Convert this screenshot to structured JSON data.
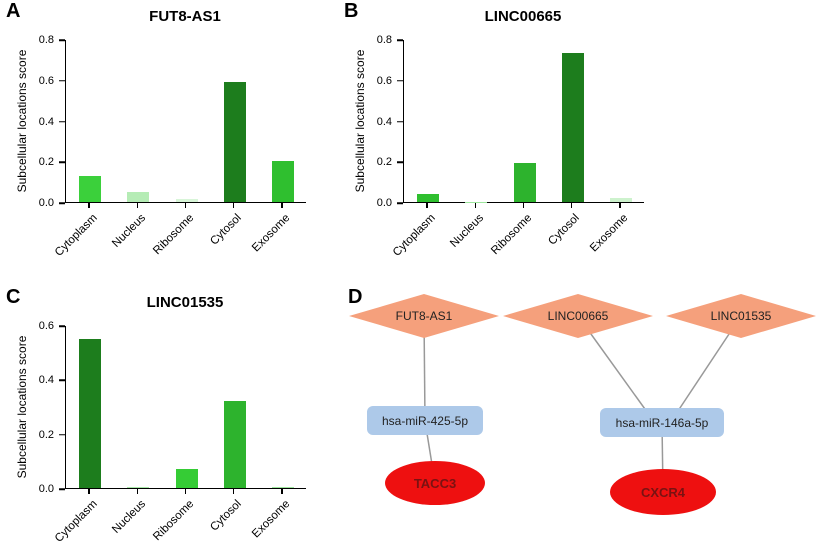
{
  "panels": {
    "a": "A",
    "b": "B",
    "c": "C",
    "d": "D"
  },
  "chart_data": [
    {
      "type": "bar",
      "title": "FUT8-AS1",
      "ylabel": "Subcellular locations score",
      "categories": [
        "Cytoplasm",
        "Nucleus",
        "Ribosome",
        "Cytosol",
        "Exosome"
      ],
      "values": [
        0.13,
        0.05,
        0.015,
        0.59,
        0.2
      ],
      "colors": [
        "#3bd03b",
        "#b5ecb5",
        "#d8f5d8",
        "#1d7d1d",
        "#2fbf2f"
      ],
      "ylim": [
        0,
        0.8
      ],
      "yticks": [
        0,
        0.2,
        0.4,
        0.6,
        0.8
      ],
      "grid": false,
      "legend": "none"
    },
    {
      "type": "bar",
      "title": "LINC00665",
      "ylabel": "Subcellular locations score",
      "categories": [
        "Cytoplasm",
        "Nucleus",
        "Ribosome",
        "Cytosol",
        "Exosome"
      ],
      "values": [
        0.04,
        0.002,
        0.19,
        0.73,
        0.02
      ],
      "colors": [
        "#2fbf2f",
        "#9de69d",
        "#2db32d",
        "#1d7d1d",
        "#cdf2cd"
      ],
      "ylim": [
        0,
        0.8
      ],
      "yticks": [
        0,
        0.2,
        0.4,
        0.6,
        0.8
      ],
      "grid": false,
      "legend": "none"
    },
    {
      "type": "bar",
      "title": "LINC01535",
      "ylabel": "Subcellular locations score",
      "categories": [
        "Cytoplasm",
        "Nucleus",
        "Ribosome",
        "Cytosol",
        "Exosome"
      ],
      "values": [
        0.55,
        0.005,
        0.07,
        0.32,
        0.002
      ],
      "colors": [
        "#1d7d1d",
        "#a8e8a8",
        "#35cc35",
        "#2db32d",
        "#9de69d"
      ],
      "ylim": [
        0,
        0.6
      ],
      "yticks": [
        0,
        0.2,
        0.4,
        0.6
      ],
      "grid": false,
      "legend": "none"
    }
  ],
  "network": {
    "lncrna_color": "#f5a07c",
    "mirna_color": "#adc9e9",
    "gene_color": "#ee1010",
    "edge_color": "#999999",
    "nodes": {
      "fut8as1": "FUT8-AS1",
      "linc00665": "LINC00665",
      "linc01535": "LINC01535",
      "mir425": "hsa-miR-425-5p",
      "mir146a": "hsa-miR-146a-5p",
      "tacc3": "TACC3",
      "cxcr4": "CXCR4"
    }
  }
}
